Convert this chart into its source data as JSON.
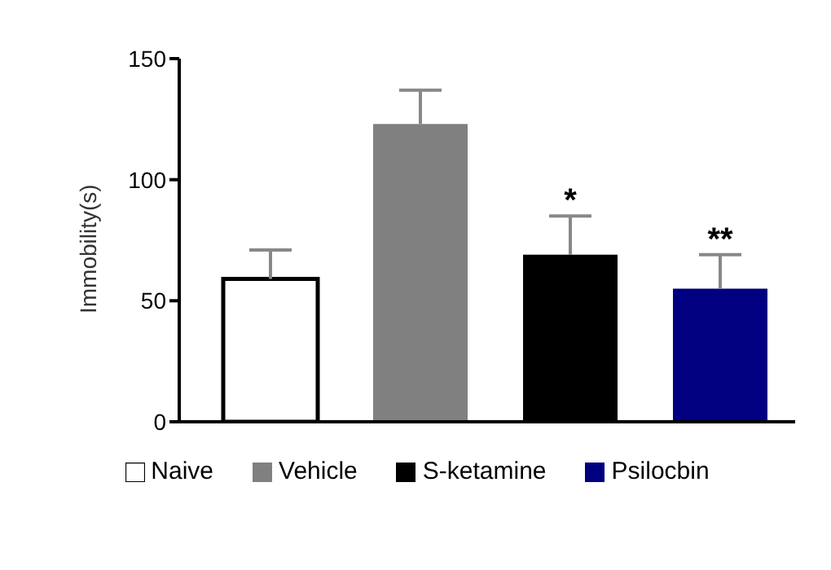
{
  "chart_data": {
    "type": "bar",
    "ylabel": "Immobility(s)",
    "categories": [
      null,
      null,
      null,
      null
    ],
    "stacked": true,
    "series": [
      {
        "name": "Naive",
        "color": "#ffffff",
        "values": [
          59,
          null,
          null,
          null
        ],
        "errors": [
          [
            59,
            71
          ],
          null,
          null,
          null
        ],
        "value_labels": [
          null,
          null,
          null,
          null
        ]
      },
      {
        "name": "Vehicle",
        "color": "#808080",
        "values": [
          null,
          123,
          null,
          null
        ],
        "errors": [
          null,
          [
            123,
            137
          ],
          null,
          null
        ],
        "value_labels": [
          null,
          null,
          null,
          null
        ]
      },
      {
        "name": "S-ketamine",
        "color": "#000000",
        "values": [
          null,
          null,
          69,
          null
        ],
        "errors": [
          null,
          null,
          [
            69,
            85
          ],
          null
        ],
        "value_labels": [
          null,
          null,
          "*",
          null
        ]
      },
      {
        "name": "Psilocbin",
        "color": "#000080",
        "values": [
          null,
          null,
          null,
          55
        ],
        "errors": [
          null,
          null,
          null,
          [
            55,
            69
          ]
        ],
        "value_labels": [
          null,
          null,
          null,
          "**"
        ]
      }
    ],
    "ylim": [
      0,
      150
    ],
    "yticks": [
      0,
      50,
      100,
      150
    ],
    "tick_labels": "y",
    "legend": "bottom",
    "grid": false
  }
}
